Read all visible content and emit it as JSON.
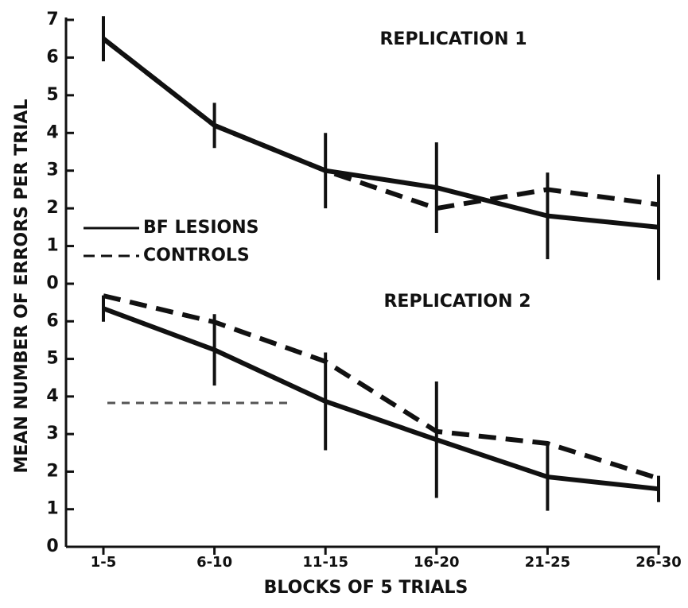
{
  "chart_data": [
    {
      "type": "line",
      "title": "REPLICATION 1",
      "ylabel": "MEAN NUMBER OF ERRORS PER TRIAL",
      "ylim": [
        0,
        7
      ],
      "yticks": [
        0,
        1,
        2,
        3,
        4,
        5,
        6,
        7
      ],
      "series": [
        {
          "name": "BF LESIONS",
          "color": "#111111",
          "dashed": false,
          "values": [
            6.5,
            4.2,
            3.0,
            2.55,
            1.8,
            1.5
          ]
        },
        {
          "name": "CONTROLS",
          "color": "#111111",
          "dashed": true,
          "values": [
            6.5,
            4.2,
            3.0,
            2.0,
            2.5,
            2.1
          ]
        }
      ],
      "errors": [
        0.6,
        0.6,
        1.0,
        1.2,
        1.15,
        1.4
      ]
    },
    {
      "type": "line",
      "title": "REPLICATION 2",
      "xlabel": "BLOCKS OF 5 TRIALS",
      "categories": [
        "1-5",
        "6-10",
        "11-15",
        "16-20",
        "21-25",
        "26-30"
      ],
      "ylim": [
        0,
        7
      ],
      "yticks": [
        0,
        1,
        2,
        3,
        4,
        5,
        6
      ],
      "series": [
        {
          "color": "#111111",
          "dashed": false,
          "values": [
            6.34,
            5.24,
            3.87,
            2.85,
            1.86,
            1.54
          ]
        },
        {
          "color": "#111111",
          "dashed": true,
          "values": [
            6.68,
            5.98,
            4.93,
            3.07,
            2.75,
            1.82
          ]
        }
      ],
      "errors": [
        0.35,
        0.95,
        1.3,
        1.55,
        0.9,
        0.35
      ]
    }
  ]
}
